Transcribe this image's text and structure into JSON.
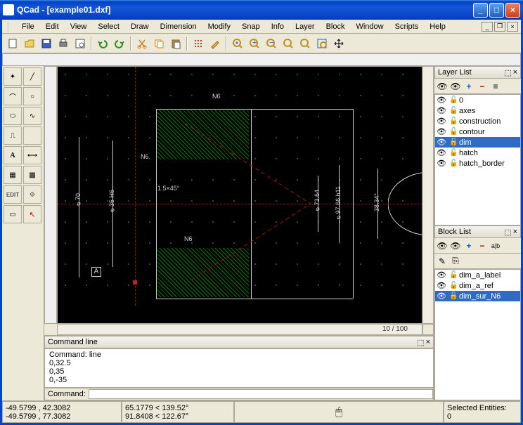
{
  "title": "QCad - [example01.dxf]",
  "menus": [
    "File",
    "Edit",
    "View",
    "Select",
    "Draw",
    "Dimension",
    "Modify",
    "Snap",
    "Info",
    "Layer",
    "Block",
    "Window",
    "Scripts",
    "Help"
  ],
  "scroll_info": "10 / 100",
  "layer_panel": {
    "title": "Layer List",
    "items": [
      {
        "name": "0",
        "sel": false
      },
      {
        "name": "axes",
        "sel": false
      },
      {
        "name": "construction",
        "sel": false
      },
      {
        "name": "contour",
        "sel": false
      },
      {
        "name": "dim",
        "sel": true
      },
      {
        "name": "hatch",
        "sel": false
      },
      {
        "name": "hatch_border",
        "sel": false
      }
    ]
  },
  "block_panel": {
    "title": "Block List",
    "items": [
      {
        "name": "dim_a_label",
        "sel": false
      },
      {
        "name": "dim_a_ref",
        "sel": false
      },
      {
        "name": "dim_sur_N6",
        "sel": true
      }
    ],
    "tool_label": "a|b"
  },
  "cmd": {
    "title": "Command line",
    "history": [
      "Command: line",
      "0,32.5",
      "0,35",
      "0,-35"
    ],
    "prompt": "Command:"
  },
  "status": {
    "coord1a": "-49.5799 , 42.3082",
    "coord1b": "-49.5799 , 77.3082",
    "coord2a": "65.1779 < 139.52°",
    "coord2b": "91.8408 < 122.67°",
    "sel_label": "Selected Entities:",
    "sel_count": "0"
  },
  "dims": {
    "d70": "⌀70",
    "d35": "⌀35 H6",
    "d73": "⌀73.64",
    "d97": "⌀97.66 h11",
    "d38": "38.34°",
    "cham": "1.5×45°",
    "n6a": "N6",
    "n6b": "N6",
    "n6c": "N6",
    "abox": "A"
  },
  "colors": {
    "bg": "#000000",
    "grid": "#404040",
    "line": "#d0d0d0",
    "hatch": "#008000",
    "axis": "#a01010",
    "sel": "#316ac5"
  }
}
